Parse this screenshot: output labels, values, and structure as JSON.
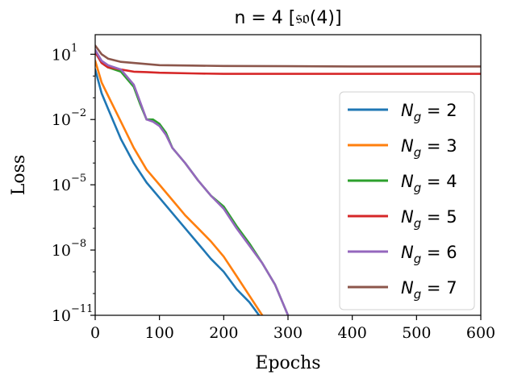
{
  "chart_data": {
    "type": "line",
    "title": "n = 4 [𝔰𝔬(4)]",
    "xlabel": "Epochs",
    "ylabel": "Loss",
    "xlim": [
      0,
      600
    ],
    "ylog": true,
    "ylim_exp": [
      -11,
      1.9
    ],
    "x_ticks": [
      0,
      100,
      200,
      300,
      400,
      500,
      600
    ],
    "y_ticks": [
      {
        "exp": 1,
        "label": "10",
        "sup": "1"
      },
      {
        "exp": -2,
        "label": "10",
        "sup": "−2"
      },
      {
        "exp": -5,
        "label": "10",
        "sup": "−5"
      },
      {
        "exp": -8,
        "label": "10",
        "sup": "−8"
      },
      {
        "exp": -11,
        "label": "10",
        "sup": "−11"
      }
    ],
    "legend_position": "right",
    "series": [
      {
        "name": "N_g = 2",
        "name_parts": [
          "N",
          "g",
          " = 2"
        ],
        "color": "#1f77b4",
        "x": [
          0,
          10,
          20,
          30,
          40,
          60,
          80,
          100,
          120,
          140,
          160,
          180,
          200,
          220,
          240,
          255
        ],
        "log10_y": [
          0.3,
          -0.8,
          -1.5,
          -2.2,
          -2.9,
          -4.0,
          -4.9,
          -5.6,
          -6.3,
          -7.0,
          -7.7,
          -8.4,
          -9.0,
          -9.8,
          -10.4,
          -11.0
        ]
      },
      {
        "name": "N_g = 3",
        "name_parts": [
          "N",
          "g",
          " = 3"
        ],
        "color": "#ff7f0e",
        "x": [
          0,
          10,
          20,
          30,
          40,
          60,
          80,
          100,
          120,
          140,
          160,
          180,
          200,
          220,
          240,
          260
        ],
        "log10_y": [
          0.7,
          -0.3,
          -0.9,
          -1.5,
          -2.1,
          -3.3,
          -4.3,
          -5.0,
          -5.7,
          -6.4,
          -7.0,
          -7.6,
          -8.3,
          -9.2,
          -10.1,
          -11.0
        ]
      },
      {
        "name": "N_g = 4",
        "name_parts": [
          "N",
          "g",
          " = 4"
        ],
        "color": "#2ca02c",
        "x": [
          0,
          10,
          20,
          40,
          60,
          70,
          80,
          90,
          100,
          110,
          120,
          140,
          160,
          180,
          200,
          220,
          240,
          260,
          280,
          300
        ],
        "log10_y": [
          1.1,
          0.6,
          0.4,
          0.2,
          -0.5,
          -1.3,
          -2.0,
          -2.0,
          -2.2,
          -2.6,
          -3.3,
          -4.0,
          -4.8,
          -5.5,
          -6.0,
          -6.9,
          -7.7,
          -8.6,
          -9.6,
          -11.0
        ]
      },
      {
        "name": "N_g = 5",
        "name_parts": [
          "N",
          "g",
          " = 5"
        ],
        "color": "#d62728",
        "x": [
          0,
          10,
          20,
          40,
          60,
          80,
          100,
          150,
          200,
          300,
          400,
          500,
          600
        ],
        "log10_y": [
          1.1,
          0.6,
          0.4,
          0.3,
          0.2,
          0.18,
          0.15,
          0.12,
          0.1,
          0.1,
          0.1,
          0.1,
          0.1
        ]
      },
      {
        "name": "N_g = 6",
        "name_parts": [
          "N",
          "g",
          " = 6"
        ],
        "color": "#9467bd",
        "x": [
          0,
          10,
          20,
          40,
          60,
          70,
          80,
          90,
          100,
          110,
          120,
          140,
          160,
          180,
          200,
          220,
          240,
          260,
          280,
          300
        ],
        "log10_y": [
          1.2,
          0.7,
          0.5,
          0.3,
          -0.4,
          -1.2,
          -2.0,
          -2.1,
          -2.3,
          -2.7,
          -3.3,
          -4.0,
          -4.8,
          -5.5,
          -6.1,
          -7.0,
          -7.8,
          -8.6,
          -9.6,
          -11.0
        ]
      },
      {
        "name": "N_g = 7",
        "name_parts": [
          "N",
          "g",
          " = 7"
        ],
        "color": "#8c564b",
        "x": [
          0,
          10,
          20,
          40,
          60,
          80,
          100,
          150,
          200,
          300,
          400,
          500,
          600
        ],
        "log10_y": [
          1.4,
          1.0,
          0.8,
          0.65,
          0.6,
          0.55,
          0.5,
          0.48,
          0.46,
          0.45,
          0.44,
          0.44,
          0.44
        ]
      }
    ]
  }
}
